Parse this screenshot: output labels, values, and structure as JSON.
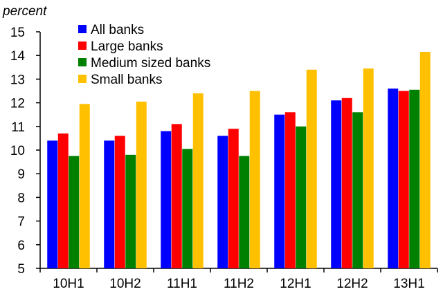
{
  "chart_data": {
    "type": "bar",
    "unit_label": "percent",
    "categories": [
      "10H1",
      "10H2",
      "11H1",
      "11H2",
      "12H1",
      "12H2",
      "13H1"
    ],
    "series": [
      {
        "name": "All banks",
        "color": "#0000ff",
        "values": [
          10.4,
          10.4,
          10.8,
          10.6,
          11.5,
          12.1,
          12.6
        ]
      },
      {
        "name": "Large banks",
        "color": "#ff0000",
        "values": [
          10.7,
          10.6,
          11.1,
          10.9,
          11.6,
          12.2,
          12.5
        ]
      },
      {
        "name": "Medium sized banks",
        "color": "#008000",
        "values": [
          9.75,
          9.8,
          10.05,
          9.75,
          11.0,
          11.6,
          12.55
        ]
      },
      {
        "name": "Small banks",
        "color": "#ffc000",
        "values": [
          11.95,
          12.05,
          12.4,
          12.5,
          13.4,
          13.45,
          14.15
        ]
      }
    ],
    "ylim": [
      5,
      15
    ],
    "yticks": [
      "5",
      "6",
      "7",
      "8",
      "9",
      "10",
      "11",
      "12",
      "13",
      "14",
      "15"
    ],
    "legend_position": "top-left",
    "grid": false
  }
}
